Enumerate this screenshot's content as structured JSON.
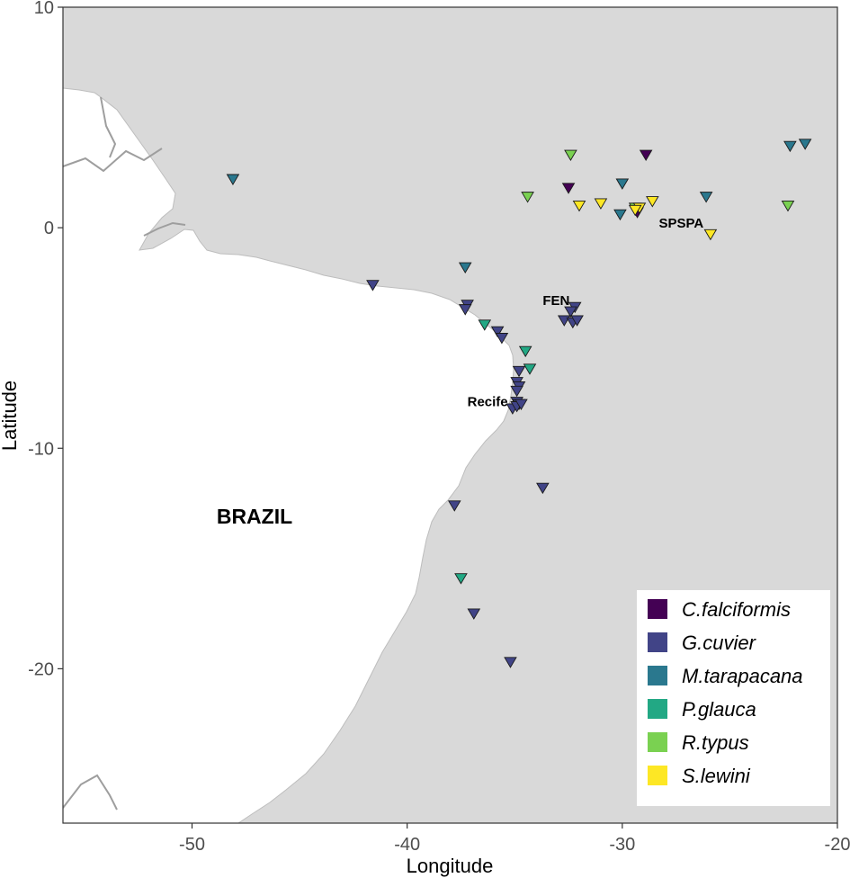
{
  "chart_data": {
    "type": "scatter",
    "title": "",
    "xlabel": "Longitude",
    "ylabel": "Latitude",
    "xlim": [
      -56,
      -20
    ],
    "ylim": [
      -27,
      10
    ],
    "x_ticks": [
      -50,
      -40,
      -30,
      -20
    ],
    "y_ticks": [
      -20,
      -10,
      0,
      10
    ],
    "x_tick_labels": [
      "-50",
      "-40",
      "-30",
      "-20"
    ],
    "y_tick_labels": [
      "-20",
      "-10",
      "0",
      "10"
    ],
    "grid": false,
    "legend_position": "bottom-right",
    "marker": "inverted-triangle",
    "country_label": "BRAZIL",
    "place_labels": [
      {
        "text": "SPSPA",
        "lon": -28.3,
        "lat": 0.0
      },
      {
        "text": "FEN",
        "lon": -33.7,
        "lat": -3.5
      },
      {
        "text": "Recife",
        "lon": -37.2,
        "lat": -8.1
      }
    ],
    "series": [
      {
        "name": "C.falciformis",
        "color": "#440154",
        "points": [
          [
            -28.9,
            3.3
          ],
          [
            -32.5,
            1.8
          ],
          [
            -29.3,
            0.7
          ]
        ]
      },
      {
        "name": "G.cuvier",
        "color": "#414487",
        "points": [
          [
            -41.6,
            -2.6
          ],
          [
            -37.2,
            -3.5
          ],
          [
            -37.3,
            -3.7
          ],
          [
            -32.2,
            -3.6
          ],
          [
            -32.4,
            -3.8
          ],
          [
            -32.7,
            -4.2
          ],
          [
            -32.3,
            -4.3
          ],
          [
            -32.1,
            -4.2
          ],
          [
            -35.8,
            -4.7
          ],
          [
            -35.6,
            -5.0
          ],
          [
            -34.8,
            -6.5
          ],
          [
            -34.9,
            -7.0
          ],
          [
            -34.8,
            -7.2
          ],
          [
            -34.9,
            -7.4
          ],
          [
            -34.9,
            -7.9
          ],
          [
            -34.8,
            -8.0
          ],
          [
            -35.1,
            -8.2
          ],
          [
            -34.9,
            -8.1
          ],
          [
            -34.7,
            -8.0
          ],
          [
            -33.7,
            -11.8
          ],
          [
            -37.8,
            -12.6
          ],
          [
            -36.9,
            -17.5
          ],
          [
            -35.2,
            -19.7
          ]
        ]
      },
      {
        "name": "M.tarapacana",
        "color": "#2a788e",
        "points": [
          [
            -48.1,
            2.2
          ],
          [
            -30.0,
            2.0
          ],
          [
            -30.1,
            0.6
          ],
          [
            -26.1,
            1.4
          ],
          [
            -22.2,
            3.7
          ],
          [
            -21.5,
            3.8
          ],
          [
            -37.3,
            -1.8
          ]
        ]
      },
      {
        "name": "P.glauca",
        "color": "#22a884",
        "points": [
          [
            -36.4,
            -4.4
          ],
          [
            -34.5,
            -5.6
          ],
          [
            -34.3,
            -6.4
          ],
          [
            -37.5,
            -15.9
          ]
        ]
      },
      {
        "name": "R.typus",
        "color": "#7ad151",
        "points": [
          [
            -32.4,
            3.3
          ],
          [
            -34.4,
            1.4
          ],
          [
            -29.4,
            0.9
          ],
          [
            -22.3,
            1.0
          ]
        ]
      },
      {
        "name": "S.lewini",
        "color": "#fde725",
        "points": [
          [
            -32.0,
            1.0
          ],
          [
            -31.0,
            1.1
          ],
          [
            -29.2,
            0.9
          ],
          [
            -29.4,
            0.8
          ],
          [
            -28.6,
            1.2
          ],
          [
            -25.9,
            -0.3
          ]
        ]
      }
    ]
  }
}
